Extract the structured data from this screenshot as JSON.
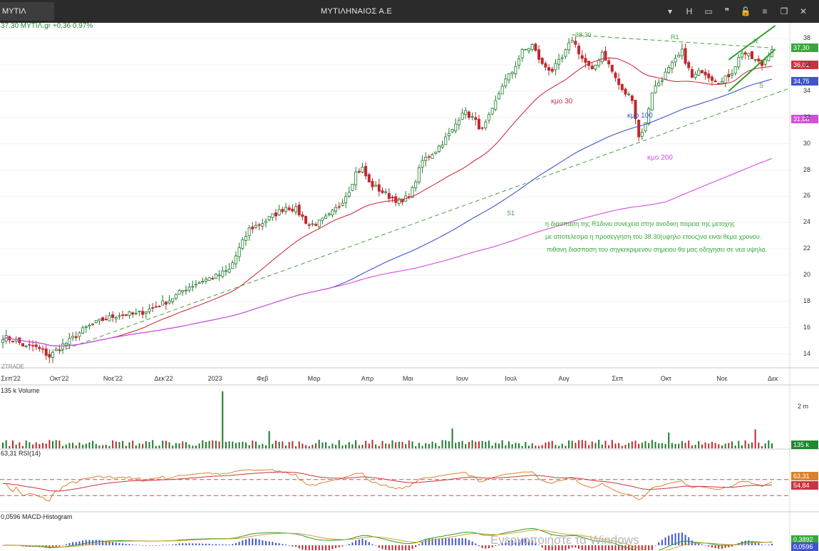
{
  "window": {
    "tab_label": "ΜΥΤΙΛ",
    "title": "ΜΥΤΙΛΗΝΑΙΟΣ Α.Ε",
    "buttons": [
      "▾",
      "H",
      "▭",
      "❞",
      "🔓",
      "≡",
      "❐",
      "✕"
    ]
  },
  "price_header": "37,30 ΜΥΤΙΛ.gr +0,36 0,97%",
  "brand": "ZTRADE",
  "annotations": {
    "high_label": "38,30",
    "r1": "R1",
    "r": "R",
    "s": "S",
    "s1": "S1",
    "ma30": "κμο 30",
    "ma100": "κμο 100",
    "ma200": "κμο 200",
    "comment": [
      "η διασπαση της R1δινει συνεχεια στην ανοδικη πορεια της μετοχης",
      "με αποτελεσμα η προσεγγηση του 38.30(υψηλο ετους)να ειναι θεμα χρονου.",
      "πιθανη διασπαση του σηγκεκριμενου σημειου θα μας οδηγησει σε νεα υψηλα."
    ]
  },
  "price_tags": [
    {
      "value": 37.3,
      "text": "37,30",
      "color": "#36a83a"
    },
    {
      "value": 36.01,
      "text": "36,01",
      "color": "#cc3340"
    },
    {
      "value": 34.75,
      "text": "34,75",
      "color": "#3f54cc"
    },
    {
      "value": 31.88,
      "text": "31,88",
      "color": "#d94be0"
    }
  ],
  "volume": {
    "label": "135 k Volume",
    "axis_label": "2 m",
    "last": "135 k"
  },
  "rsi": {
    "label": "63,31 RSI(14)",
    "value": "63,31",
    "signal": "54,84"
  },
  "macd": {
    "label": "0,0596 MACD-Histogram",
    "value": "0,3892",
    "hist": "0,0596"
  },
  "watermark": "Ενεργοποιήστε τα Windows",
  "chart_data": {
    "type": "candlestick",
    "months": [
      "Σεπ'22",
      "Οκτ'22",
      "Νοε'22",
      "Δεκ'22",
      "2023",
      "Φεβ",
      "Μαρ",
      "Απρ",
      "Μαι",
      "Ιουν",
      "Ιουλ",
      "Αυγ",
      "Σεπ",
      "Οκτ",
      "Νοε",
      "Δεκ"
    ],
    "y_ticks": [
      14,
      16,
      18,
      20,
      22,
      24,
      26,
      28,
      30,
      32,
      34,
      36,
      38
    ],
    "ylim": [
      13,
      39
    ],
    "close_path": [
      [
        0,
        15.3
      ],
      [
        4,
        15
      ],
      [
        7,
        14.5
      ],
      [
        9,
        14.6
      ],
      [
        12,
        14.2
      ],
      [
        14,
        13.8
      ],
      [
        17,
        14.5
      ],
      [
        20,
        15
      ],
      [
        25,
        16
      ],
      [
        30,
        16.6
      ],
      [
        35,
        17
      ],
      [
        40,
        17
      ],
      [
        45,
        17.5
      ],
      [
        50,
        18.1
      ],
      [
        55,
        19
      ],
      [
        60,
        19.6
      ],
      [
        64,
        19.9
      ],
      [
        68,
        20.4
      ],
      [
        71,
        22
      ],
      [
        74,
        23.5
      ],
      [
        78,
        24
      ],
      [
        81,
        24.5
      ],
      [
        85,
        25.2
      ],
      [
        88,
        25
      ],
      [
        92,
        23.8
      ],
      [
        95,
        24
      ],
      [
        98,
        24.5
      ],
      [
        101,
        25.3
      ],
      [
        104,
        26.5
      ],
      [
        106,
        27.8
      ],
      [
        108,
        28.1
      ],
      [
        110,
        27
      ],
      [
        113,
        26.5
      ],
      [
        116,
        26
      ],
      [
        120,
        25.5
      ],
      [
        123,
        26.5
      ],
      [
        126,
        28.7
      ],
      [
        130,
        29.5
      ],
      [
        135,
        31
      ],
      [
        138,
        32.5
      ],
      [
        141,
        32
      ],
      [
        144,
        31
      ],
      [
        147,
        32.5
      ],
      [
        150,
        34.5
      ],
      [
        153,
        35.5
      ],
      [
        156,
        37
      ],
      [
        159,
        37.5
      ],
      [
        162,
        36
      ],
      [
        165,
        35.6
      ],
      [
        168,
        36.5
      ],
      [
        171,
        38
      ],
      [
        174,
        36.5
      ],
      [
        177,
        35.5
      ],
      [
        180,
        37
      ],
      [
        183,
        35.5
      ],
      [
        186,
        34
      ],
      [
        189,
        33.5
      ],
      [
        191,
        30.5
      ],
      [
        193,
        31.5
      ],
      [
        195,
        34
      ],
      [
        198,
        35
      ],
      [
        201,
        36
      ],
      [
        204,
        37
      ],
      [
        207,
        35
      ],
      [
        210,
        35.6
      ],
      [
        213,
        35
      ],
      [
        216,
        34.7
      ],
      [
        219,
        35.5
      ],
      [
        222,
        37
      ],
      [
        225,
        36.5
      ],
      [
        228,
        36
      ],
      [
        231,
        37.3
      ]
    ],
    "n_bars": 232,
    "moving_averages": [
      {
        "name": "κμο 30",
        "period": 30,
        "color": "#cc3340"
      },
      {
        "name": "κμο 100",
        "period": 100,
        "color": "#3f54cc"
      },
      {
        "name": "κμο 200",
        "period": 200,
        "color": "#d94be0"
      }
    ],
    "trendlines": [
      {
        "name": "R1",
        "from": [
          171,
          38.3
        ],
        "to": [
          231,
          37.3
        ],
        "color": "#48a048",
        "dashed": true
      },
      {
        "name": "S1",
        "from": [
          17,
          14.2
        ],
        "to": [
          236,
          34.2
        ],
        "color": "#48a048",
        "dashed": true
      },
      {
        "name": "R",
        "from": [
          218,
          36.4
        ],
        "to": [
          232,
          39
        ],
        "color": "#2aa02a",
        "dashed": false
      },
      {
        "name": "S",
        "from": [
          218,
          34
        ],
        "to": [
          232,
          37.2
        ],
        "color": "#2aa02a",
        "dashed": false
      }
    ],
    "rsi_bands": [
      70,
      30
    ]
  }
}
